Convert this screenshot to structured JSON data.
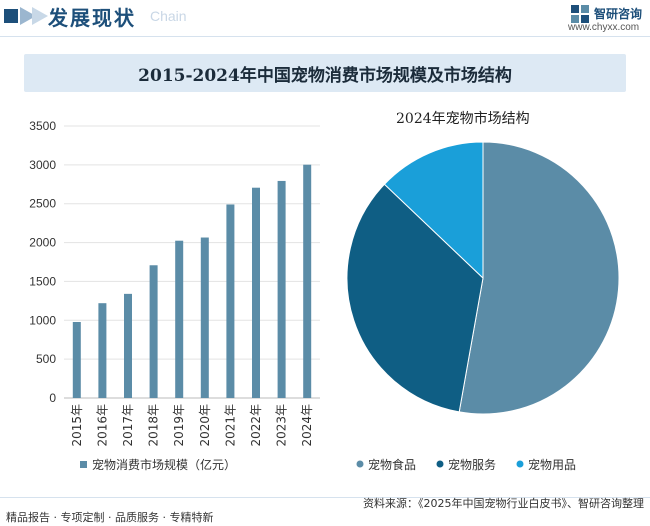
{
  "header": {
    "title": "发展现状",
    "subtitle": "Chain",
    "brand_name": "智研咨询",
    "brand_url": "www.chyxx.com"
  },
  "chart_data": [
    {
      "type": "bar",
      "title": "2015-2024年中国宠物消费市场规模及市场结构",
      "categories": [
        "2015年",
        "2016年",
        "2017年",
        "2018年",
        "2019年",
        "2020年",
        "2021年",
        "2022年",
        "2023年",
        "2024年"
      ],
      "series": [
        {
          "name": "宠物消费市场规模（亿元）",
          "values": [
            978,
            1220,
            1340,
            1708,
            2024,
            2065,
            2490,
            2706,
            2793,
            3002
          ],
          "color": "#5b8ca7"
        }
      ],
      "ylim": [
        0,
        3500
      ],
      "yticks": [
        0,
        500,
        1000,
        1500,
        2000,
        2500,
        3000,
        3500
      ],
      "legend": "bottom"
    },
    {
      "type": "pie",
      "title": "2024年宠物市场结构",
      "labels": [
        "宠物食品",
        "宠物服务",
        "宠物用品"
      ],
      "values": [
        52.8,
        34.3,
        12.9
      ],
      "colors": [
        "#5b8ca7",
        "#0f5e84",
        "#1a9fd9"
      ],
      "legend": "bottom"
    }
  ],
  "footer": {
    "left": "精品报告 · 专项定制 · 品质服务 · 专精特新",
    "source": "资料来源：《2025年中国宠物行业白皮书》、智研咨询整理"
  }
}
